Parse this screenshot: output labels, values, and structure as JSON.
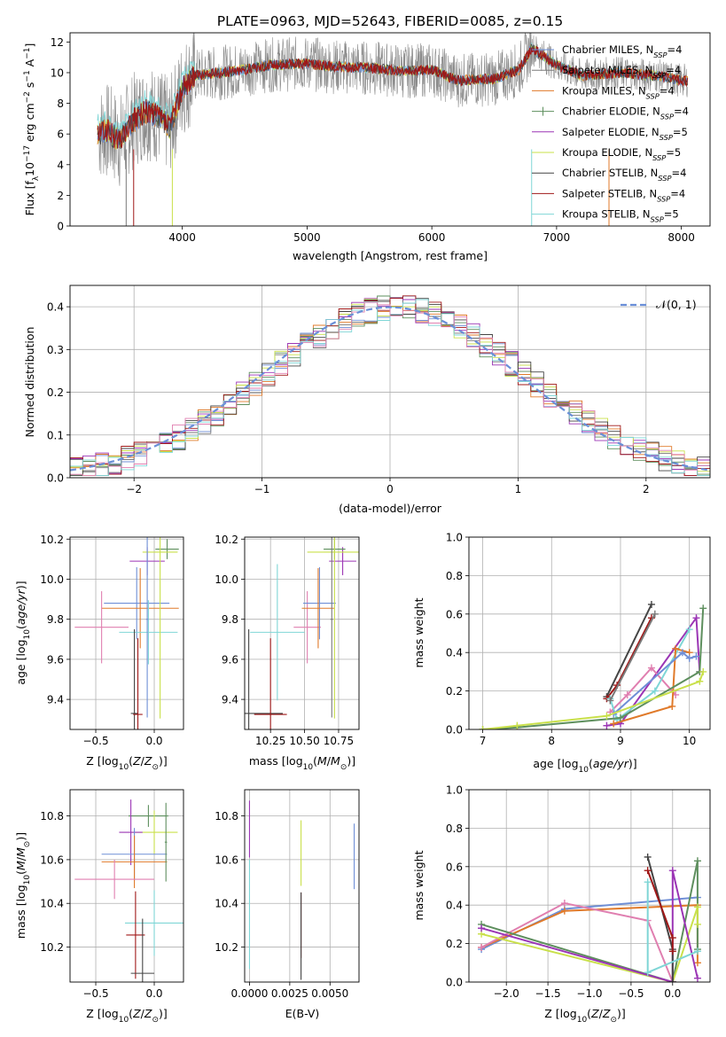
{
  "title": "PLATE=0963, MJD=52643, FIBERID=0085, z=0.15",
  "colors": {
    "chabrier_miles": "#6f8fd6",
    "salpeter_miles": "#7a7a7a",
    "kroupa_miles": "#e07a2a",
    "chabrier_elodie": "#5e8f5e",
    "salpeter_elodie": "#9b35b5",
    "kroupa_elodie": "#c9e04a",
    "chabrier_stelib": "#444444",
    "salpeter_stelib": "#a01818",
    "kroupa_stelib": "#7fd6d6",
    "pink": "#e07fb0",
    "grid": "#b0b0b0"
  },
  "chart_data": [
    {
      "id": "spectrum",
      "type": "line",
      "xlabel": "wavelength [Angstrom, rest frame]",
      "ylabel": "Flux [f_λ10^-17 erg cm^-2 s^-1 A^-1]",
      "xlim": [
        3100,
        8230
      ],
      "ylim": [
        0,
        12.6
      ],
      "xticks": [
        4000,
        5000,
        6000,
        7000,
        8000
      ],
      "yticks": [
        0,
        2,
        4,
        6,
        8,
        10,
        12
      ],
      "grid": false,
      "legend_position": "top-right",
      "legend": [
        {
          "key": "chabrier_miles",
          "model": "Chabrier MILES",
          "n": "4"
        },
        {
          "key": "salpeter_miles",
          "model": "Salpeter MILES",
          "n": "4"
        },
        {
          "key": "kroupa_miles",
          "model": "Kroupa MILES",
          "n": "4"
        },
        {
          "key": "chabrier_elodie",
          "model": "Chabrier ELODIE",
          "n": "4"
        },
        {
          "key": "salpeter_elodie",
          "model": "Salpeter ELODIE",
          "n": "5"
        },
        {
          "key": "kroupa_elodie",
          "model": "Kroupa ELODIE",
          "n": "5"
        },
        {
          "key": "chabrier_stelib",
          "model": "Chabrier STELIB",
          "n": "4"
        },
        {
          "key": "salpeter_stelib",
          "model": "Salpeter STELIB",
          "n": "4"
        },
        {
          "key": "kroupa_stelib",
          "model": "Kroupa STELIB",
          "n": "5"
        }
      ],
      "model_curve": {
        "x": [
          3300,
          3400,
          3500,
          3600,
          3700,
          3800,
          3900,
          4000,
          4100,
          4300,
          4500,
          4700,
          5000,
          5200,
          5500,
          5800,
          6000,
          6200,
          6500,
          6700,
          6800,
          7000,
          7200,
          7500,
          7800,
          8000
        ],
        "y": [
          6.0,
          6.2,
          5.5,
          6.8,
          7.5,
          7.2,
          6.5,
          9.0,
          9.8,
          10.0,
          10.2,
          10.5,
          10.6,
          10.4,
          10.3,
          10.1,
          10.2,
          9.5,
          9.6,
          10.2,
          11.6,
          10.5,
          9.8,
          10.0,
          9.8,
          9.5
        ]
      }
    },
    {
      "id": "residuals",
      "type": "histogram",
      "xlabel": "(data-model)/error",
      "ylabel": "Normed distribution",
      "xlim": [
        -2.5,
        2.5
      ],
      "ylim": [
        0,
        0.45
      ],
      "xticks": [
        -2,
        -1,
        0,
        1,
        2
      ],
      "yticks": [
        0.0,
        0.1,
        0.2,
        0.3,
        0.4
      ],
      "grid": true,
      "legend_position": "top-right",
      "legend_label": "N(0,1)",
      "bin_width": 0.1
    },
    {
      "id": "age_vs_Z",
      "type": "errorbar",
      "xlabel": "Z [log10(Z/Z⊙)]",
      "ylabel": "age [log10(age/yr)]",
      "xlim": [
        -0.72,
        0.25
      ],
      "ylim": [
        9.25,
        10.21
      ],
      "xticks": [
        -0.5,
        0.0
      ],
      "yticks": [
        9.4,
        9.6,
        9.8,
        10.0,
        10.2
      ],
      "grid": true,
      "points": [
        {
          "key": "chabrier_miles",
          "x": -0.15,
          "xerr": 0.28,
          "y": 9.88,
          "yerr": 0.18
        },
        {
          "key": "kroupa_miles",
          "x": -0.12,
          "xerr": 0.33,
          "y": 9.855,
          "yerr": 0.2
        },
        {
          "key": "pink",
          "x": -0.45,
          "xerr": 0.23,
          "y": 9.76,
          "yerr": 0.18
        },
        {
          "key": "kroupa_stelib",
          "x": -0.05,
          "xerr": 0.25,
          "y": 9.735,
          "yerr": 0.16
        },
        {
          "key": "salpeter_elodie",
          "x": -0.06,
          "xerr": 0.15,
          "y": 10.09,
          "yerr": 0.07
        },
        {
          "key": "chabrier_elodie",
          "x": 0.11,
          "xerr": 0.1,
          "y": 10.15,
          "yerr": 0.05
        },
        {
          "key": "kroupa_elodie",
          "x": 0.05,
          "xerr": 0.15,
          "y": 10.135,
          "yerr": 0.83
        },
        {
          "key": "chabrier_stelib",
          "x": -0.17,
          "xerr": 0.03,
          "y": 9.33,
          "yerr": 0.42
        },
        {
          "key": "salpeter_stelib",
          "x": -0.14,
          "xerr": 0.04,
          "y": 9.325,
          "yerr": 0.38
        },
        {
          "key": "chabrier_miles",
          "x": -0.06,
          "xerr": 0.01,
          "y": 9.8,
          "yerr": 0.49
        }
      ]
    },
    {
      "id": "age_vs_mass",
      "type": "errorbar",
      "xlabel": "mass [log10(M/M⊙)]",
      "ylabel": "",
      "xlim": [
        10.06,
        10.9
      ],
      "ylim": [
        9.25,
        10.21
      ],
      "xticks": [
        10.25,
        10.5,
        10.75
      ],
      "yticks": [
        9.4,
        9.6,
        9.8,
        10.0,
        10.2
      ],
      "grid": true,
      "points": [
        {
          "key": "chabrier_stelib",
          "x": 10.09,
          "xerr": 0.25,
          "y": 9.33,
          "yerr": 0.42
        },
        {
          "key": "salpeter_stelib",
          "x": 10.25,
          "xerr": 0.12,
          "y": 9.325,
          "yerr": 0.38
        },
        {
          "key": "kroupa_stelib",
          "x": 10.3,
          "xerr": 0.2,
          "y": 9.735,
          "yerr": 0.34
        },
        {
          "key": "pink",
          "x": 10.52,
          "xerr": 0.1,
          "y": 9.76,
          "yerr": 0.18
        },
        {
          "key": "chabrier_miles",
          "x": 10.61,
          "xerr": 0.12,
          "y": 9.88,
          "yerr": 0.18
        },
        {
          "key": "kroupa_miles",
          "x": 10.6,
          "xerr": 0.12,
          "y": 9.855,
          "yerr": 0.2
        },
        {
          "key": "salpeter_elodie",
          "x": 10.78,
          "xerr": 0.1,
          "y": 10.09,
          "yerr": 0.07
        },
        {
          "key": "chabrier_elodie",
          "x": 10.72,
          "xerr": 0.08,
          "y": 10.15,
          "yerr": 0.05
        },
        {
          "key": "kroupa_elodie",
          "x": 10.72,
          "xerr": 0.2,
          "y": 10.135,
          "yerr": 0.83
        },
        {
          "key": "salpeter_miles",
          "x": 10.7,
          "xerr": 0.01,
          "y": 9.8,
          "yerr": 0.49
        }
      ]
    },
    {
      "id": "weight_vs_age",
      "type": "line",
      "xlabel": "age [log10(age/yr)]",
      "ylabel": "mass weight",
      "xlim": [
        6.8,
        10.3
      ],
      "ylim": [
        0,
        1
      ],
      "xticks": [
        7,
        8,
        9,
        10
      ],
      "yticks": [
        0.0,
        0.2,
        0.4,
        0.6,
        0.8,
        1.0
      ],
      "grid": true,
      "series": [
        {
          "key": "chabrier_stelib",
          "x": [
            8.8,
            9.45
          ],
          "y": [
            0.17,
            0.65
          ]
        },
        {
          "key": "salpeter_stelib",
          "x": [
            8.8,
            8.95,
            9.45
          ],
          "y": [
            0.16,
            0.23,
            0.58
          ]
        },
        {
          "key": "salpeter_elodie",
          "x": [
            8.8,
            9.0,
            10.1,
            10.15
          ],
          "y": [
            0.02,
            0.03,
            0.58,
            0.3
          ]
        },
        {
          "key": "pink",
          "x": [
            8.85,
            9.1,
            9.45,
            9.8
          ],
          "y": [
            0.09,
            0.18,
            0.32,
            0.18
          ]
        },
        {
          "key": "kroupa_stelib",
          "x": [
            8.85,
            8.95,
            9.5,
            10.0
          ],
          "y": [
            0.16,
            0.05,
            0.2,
            0.52
          ]
        },
        {
          "key": "kroupa_miles",
          "x": [
            8.9,
            9.75,
            9.8,
            10.0
          ],
          "y": [
            0.03,
            0.12,
            0.42,
            0.4
          ]
        },
        {
          "key": "chabrier_miles",
          "x": [
            8.9,
            9.9,
            10.0,
            10.1
          ],
          "y": [
            0.08,
            0.4,
            0.37,
            0.38
          ]
        },
        {
          "key": "chabrier_elodie",
          "x": [
            7.0,
            7.5,
            9.0,
            10.15,
            10.2
          ],
          "y": [
            0.0,
            0.01,
            0.06,
            0.3,
            0.63
          ]
        },
        {
          "key": "kroupa_elodie",
          "x": [
            7.0,
            7.5,
            8.8,
            10.15,
            10.2
          ],
          "y": [
            0.0,
            0.02,
            0.07,
            0.25,
            0.3
          ]
        },
        {
          "key": "salpeter_miles",
          "x": [
            8.85,
            9.5
          ],
          "y": [
            0.15,
            0.6
          ]
        }
      ]
    },
    {
      "id": "mass_vs_Z",
      "type": "errorbar",
      "xlabel": "Z [log10(Z/Z⊙)]",
      "ylabel": "mass [log10(M/M⊙)]",
      "xlim": [
        -0.72,
        0.25
      ],
      "ylim": [
        10.04,
        10.92
      ],
      "xticks": [
        -0.5,
        0.0
      ],
      "yticks": [
        10.2,
        10.4,
        10.6,
        10.8
      ],
      "grid": true,
      "points": [
        {
          "key": "chabrier_elodie",
          "x": -0.05,
          "xerr": 0.17,
          "y": 10.8,
          "yerr": 0.05
        },
        {
          "key": "kroupa_elodie",
          "x": 0.0,
          "xerr": 0.2,
          "y": 10.725,
          "yerr": 0.1
        },
        {
          "key": "salpeter_elodie",
          "x": -0.2,
          "xerr": 0.1,
          "y": 10.725,
          "yerr": 0.15
        },
        {
          "key": "chabrier_miles",
          "x": -0.17,
          "xerr": 0.28,
          "y": 10.625,
          "yerr": 0.12
        },
        {
          "key": "kroupa_miles",
          "x": -0.17,
          "xerr": 0.28,
          "y": 10.59,
          "yerr": 0.12
        },
        {
          "key": "pink",
          "x": -0.34,
          "xerr": 0.34,
          "y": 10.51,
          "yerr": 0.09
        },
        {
          "key": "kroupa_stelib",
          "x": 0.0,
          "xerr": 0.25,
          "y": 10.31,
          "yerr": 0.15
        },
        {
          "key": "salpeter_stelib",
          "x": -0.16,
          "xerr": 0.08,
          "y": 10.255,
          "yerr": 0.2
        },
        {
          "key": "chabrier_stelib",
          "x": -0.1,
          "xerr": 0.1,
          "y": 10.08,
          "yerr": 0.25
        },
        {
          "key": "chabrier_elodie",
          "x": 0.1,
          "xerr": 0.01,
          "y": 10.68,
          "yerr": 0.18
        }
      ]
    },
    {
      "id": "mass_vs_ebv",
      "type": "errorbar",
      "xlabel": "E(B-V)",
      "ylabel": "",
      "xlim": [
        -0.0003,
        0.0068
      ],
      "ylim": [
        10.04,
        10.92
      ],
      "xticks": [
        0.0,
        0.0025,
        0.005
      ],
      "xtick_labels": [
        "0.0000",
        "0.0025",
        "0.0050"
      ],
      "yticks": [
        10.2,
        10.4,
        10.6,
        10.8
      ],
      "grid": true,
      "points": [
        {
          "key": "salpeter_elodie",
          "x": 0.0,
          "y": 10.74,
          "yerr": 0.13
        },
        {
          "key": "kroupa_stelib",
          "x": 0.0,
          "y": 10.35,
          "yerr": 0.25
        },
        {
          "key": "kroupa_elodie",
          "x": 0.0032,
          "y": 10.63,
          "yerr": 0.15
        },
        {
          "key": "salpeter_stelib",
          "x": 0.0032,
          "y": 10.3,
          "yerr": 0.15
        },
        {
          "key": "chabrier_stelib",
          "x": 0.0032,
          "y": 10.25,
          "yerr": 0.2
        },
        {
          "key": "chabrier_miles",
          "x": 0.0065,
          "y": 10.615,
          "yerr": 0.15
        }
      ]
    },
    {
      "id": "weight_vs_Z",
      "type": "line",
      "xlabel": "Z [log10(Z/Z⊙)]",
      "ylabel": "mass weight",
      "xlim": [
        -2.45,
        0.45
      ],
      "ylim": [
        0,
        1
      ],
      "xticks": [
        -2.0,
        -1.5,
        -1.0,
        -0.5,
        0.0
      ],
      "yticks": [
        0.0,
        0.2,
        0.4,
        0.6,
        0.8,
        1.0
      ],
      "grid": true,
      "series": [
        {
          "key": "chabrier_miles",
          "x": [
            -2.3,
            -1.3,
            0.3
          ],
          "y": [
            0.17,
            0.38,
            0.44
          ]
        },
        {
          "key": "kroupa_miles",
          "x": [
            -2.3,
            -1.3,
            0.3,
            0.3
          ],
          "y": [
            0.18,
            0.37,
            0.4,
            0.1
          ]
        },
        {
          "key": "pink",
          "x": [
            -2.3,
            -1.3,
            -0.3,
            0.0
          ],
          "y": [
            0.18,
            0.41,
            0.32,
            0.0
          ]
        },
        {
          "key": "chabrier_elodie",
          "x": [
            -2.3,
            0.0,
            0.3,
            0.3
          ],
          "y": [
            0.3,
            0.0,
            0.63,
            0.17
          ]
        },
        {
          "key": "kroupa_elodie",
          "x": [
            -2.3,
            0.0,
            0.3,
            0.3
          ],
          "y": [
            0.25,
            0.0,
            0.39,
            0.3
          ]
        },
        {
          "key": "salpeter_elodie",
          "x": [
            -2.3,
            0.0,
            0.0,
            0.3
          ],
          "y": [
            0.28,
            0.0,
            0.58,
            0.02
          ]
        },
        {
          "key": "chabrier_stelib",
          "x": [
            -0.3,
            0.0,
            0.0
          ],
          "y": [
            0.65,
            0.17,
            0.0
          ]
        },
        {
          "key": "salpeter_stelib",
          "x": [
            -0.3,
            0.0,
            0.0
          ],
          "y": [
            0.58,
            0.23,
            0.16
          ]
        },
        {
          "key": "kroupa_stelib",
          "x": [
            -0.3,
            -0.3,
            0.3
          ],
          "y": [
            0.52,
            0.05,
            0.16
          ]
        }
      ]
    }
  ]
}
